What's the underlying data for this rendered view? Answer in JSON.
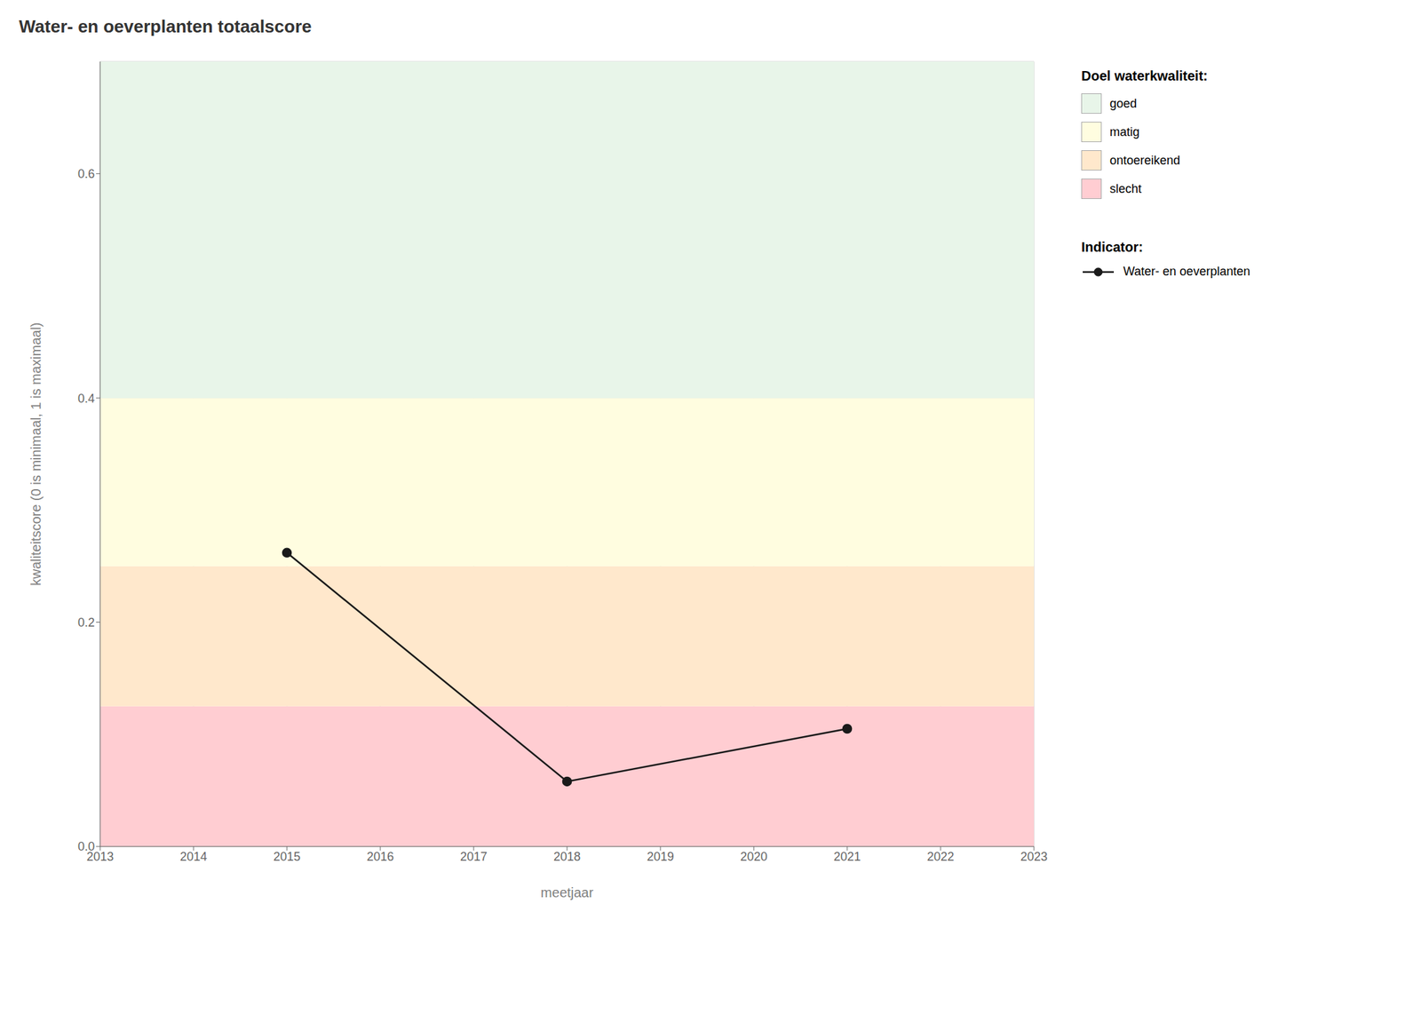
{
  "chart_data": {
    "type": "line",
    "title": "Water- en oeverplanten totaalscore",
    "x_label": "meetjaar",
    "y_label": "kwaliteitscore (0 is minimaal, 1 is maximaal)",
    "x": [
      2015,
      2018,
      2021
    ],
    "series": [
      {
        "name": "Water- en oeverplanten",
        "color": "#1a1a1a",
        "marker": "circle",
        "values": [
          0.262,
          0.058,
          0.105
        ]
      }
    ],
    "xlim": [
      2013,
      2023
    ],
    "xticks": [
      2013,
      2014,
      2015,
      2016,
      2017,
      2018,
      2019,
      2020,
      2021,
      2022,
      2023
    ],
    "ylim": [
      0,
      0.7
    ],
    "yticks": [
      {
        "value": 0.0,
        "label": "0.0"
      },
      0.2,
      0.4,
      0.6
    ],
    "grid": true,
    "zones": [
      {
        "ymin": 0.0,
        "ymax": 0.125,
        "color": "#FFCDD2",
        "label": "slecht"
      },
      {
        "ymin": 0.125,
        "ymax": 0.25,
        "color": "#FFE8CC",
        "label": "ontoereikend"
      },
      {
        "ymin": 0.25,
        "ymax": 0.4,
        "color": "#FFFDE0",
        "label": "matig"
      },
      {
        "ymin": 0.4,
        "ymax": 0.7,
        "color": "#E8F5E9",
        "label": "goed"
      }
    ],
    "zones_title": "Doel waterkwaliteit:",
    "series_title": "Indicator:"
  }
}
